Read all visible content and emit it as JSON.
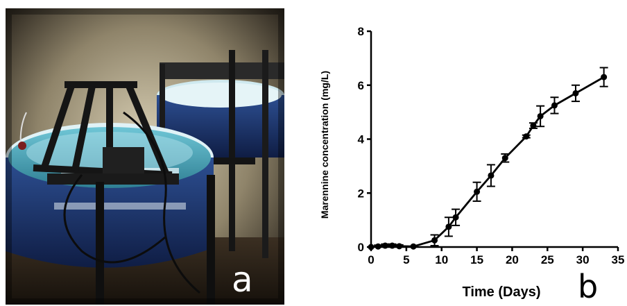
{
  "panels": {
    "a": {
      "label": "a",
      "image_description_icon": "photo-aquarium-tank-icon"
    },
    "b": {
      "label": "b"
    }
  },
  "chart_data": {
    "type": "line",
    "xlabel": "Time (Days)",
    "ylabel": "Marennine concentration (mg/L)",
    "xlim": [
      0,
      35
    ],
    "ylim": [
      0,
      8
    ],
    "x_ticks": [
      0,
      5,
      10,
      15,
      20,
      25,
      30,
      35
    ],
    "y_ticks": [
      0,
      2,
      4,
      6,
      8
    ],
    "grid": false,
    "series": [
      {
        "x": [
          0,
          1,
          2,
          3,
          4,
          6,
          9,
          11,
          12,
          15,
          17,
          19,
          22,
          23,
          24,
          26,
          29,
          33
        ],
        "y": [
          0.0,
          0.02,
          0.05,
          0.05,
          0.03,
          0.02,
          0.25,
          0.75,
          1.1,
          2.05,
          2.65,
          3.3,
          4.1,
          4.5,
          4.85,
          5.25,
          5.7,
          6.3
        ],
        "err": [
          0.02,
          0.05,
          0.06,
          0.06,
          0.05,
          0.04,
          0.2,
          0.35,
          0.3,
          0.35,
          0.4,
          0.15,
          0.05,
          0.1,
          0.38,
          0.3,
          0.3,
          0.35
        ]
      }
    ],
    "colors": {
      "line": "#000000",
      "marker": "#000000"
    }
  }
}
